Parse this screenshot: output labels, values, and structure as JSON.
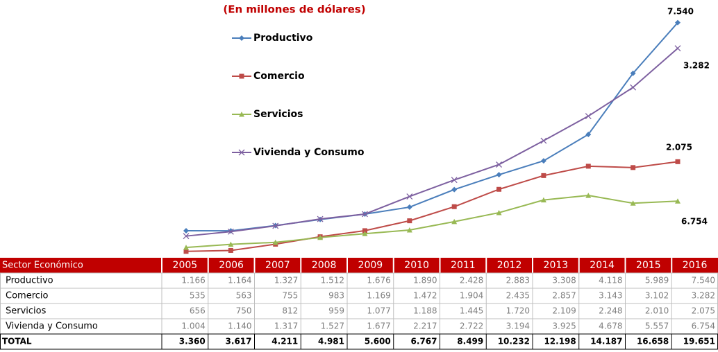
{
  "chart_data": {
    "type": "line",
    "title": "(En millones de dólares)",
    "categories": [
      "2005",
      "2006",
      "2007",
      "2008",
      "2009",
      "2010",
      "2011",
      "2012",
      "2013",
      "2014",
      "2015",
      "2016"
    ],
    "ylim": [
      0,
      8000
    ],
    "series": [
      {
        "name": "Productivo",
        "color": "#4a7ebb",
        "marker": "diamond",
        "values": [
          1166,
          1164,
          1327,
          1512,
          1676,
          1890,
          2428,
          2883,
          3308,
          4118,
          5989,
          7540
        ],
        "value_labels": [
          "1.166",
          "1.164",
          "1.327",
          "1.512",
          "1.676",
          "1.890",
          "2.428",
          "2.883",
          "3.308",
          "4.118",
          "5.989",
          "7.540"
        ]
      },
      {
        "name": "Comercio",
        "color": "#be4b48",
        "marker": "square",
        "values": [
          535,
          563,
          755,
          983,
          1169,
          1472,
          1904,
          2435,
          2857,
          3143,
          3102,
          3282
        ],
        "value_labels": [
          "535",
          "563",
          "755",
          "983",
          "1.169",
          "1.472",
          "1.904",
          "2.435",
          "2.857",
          "3.143",
          "3.102",
          "3.282"
        ]
      },
      {
        "name": "Servicios",
        "color": "#98b954",
        "marker": "triangle",
        "values": [
          656,
          750,
          812,
          959,
          1077,
          1188,
          1445,
          1720,
          2109,
          2248,
          2010,
          2075
        ],
        "value_labels": [
          "656",
          "750",
          "812",
          "959",
          "1.077",
          "1.188",
          "1.445",
          "1.720",
          "2.109",
          "2.248",
          "2.010",
          "2.075"
        ]
      },
      {
        "name": "Vivienda y Consumo",
        "color": "#7d60a0",
        "marker": "x",
        "values": [
          1004,
          1140,
          1317,
          1527,
          1677,
          2217,
          2722,
          3194,
          3925,
          4678,
          5557,
          6754
        ],
        "value_labels": [
          "1.004",
          "1.140",
          "1.317",
          "1.527",
          "1.677",
          "2.217",
          "2.722",
          "3.194",
          "3.925",
          "4.678",
          "5.557",
          "6.754"
        ]
      }
    ],
    "table_header": "Sector Económico",
    "total_label": "TOTAL",
    "totals": {
      "values": [
        3360,
        3617,
        4211,
        4981,
        5600,
        6767,
        8499,
        10232,
        12198,
        14187,
        16658,
        19651
      ],
      "value_labels": [
        "3.360",
        "3.617",
        "4.211",
        "4.981",
        "5.600",
        "6.767",
        "8.499",
        "10.232",
        "12.198",
        "14.187",
        "16.658",
        "19.651"
      ]
    }
  }
}
